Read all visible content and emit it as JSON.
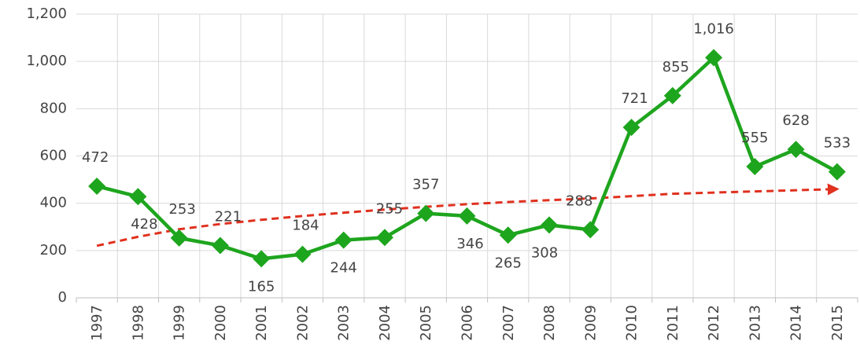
{
  "chart_data": {
    "type": "line",
    "categories": [
      "1997",
      "1998",
      "1999",
      "2000",
      "2001",
      "2002",
      "2003",
      "2004",
      "2005",
      "2006",
      "2007",
      "2008",
      "2009",
      "2010",
      "2011",
      "2012",
      "2013",
      "2014",
      "2015"
    ],
    "series": [
      {
        "color": "#1ea51e",
        "marker": "diamond",
        "values": [
          472,
          428,
          253,
          221,
          165,
          184,
          244,
          255,
          357,
          346,
          265,
          308,
          288,
          721,
          855,
          1016,
          555,
          628,
          533
        ],
        "value_labels": [
          "472",
          "428",
          "253",
          "221",
          "165",
          "184",
          "244",
          "255",
          "357",
          "346",
          "265",
          "308",
          "288",
          "721",
          "855",
          "1,016",
          "555",
          "628",
          "533"
        ]
      },
      {
        "color": "#e0301e",
        "dashed": true,
        "arrow": true,
        "values": [
          220,
          258,
          290,
          312,
          330,
          346,
          360,
          373,
          385,
          396,
          405,
          413,
          420,
          430,
          440,
          445,
          450,
          455,
          460
        ]
      }
    ],
    "ylim": [
      0,
      1200
    ],
    "yticks": [
      0,
      200,
      400,
      600,
      800,
      {
        "value": 1000,
        "label": "1,000"
      },
      {
        "value": 1200,
        "label": "1,200"
      }
    ],
    "grid": true
  }
}
